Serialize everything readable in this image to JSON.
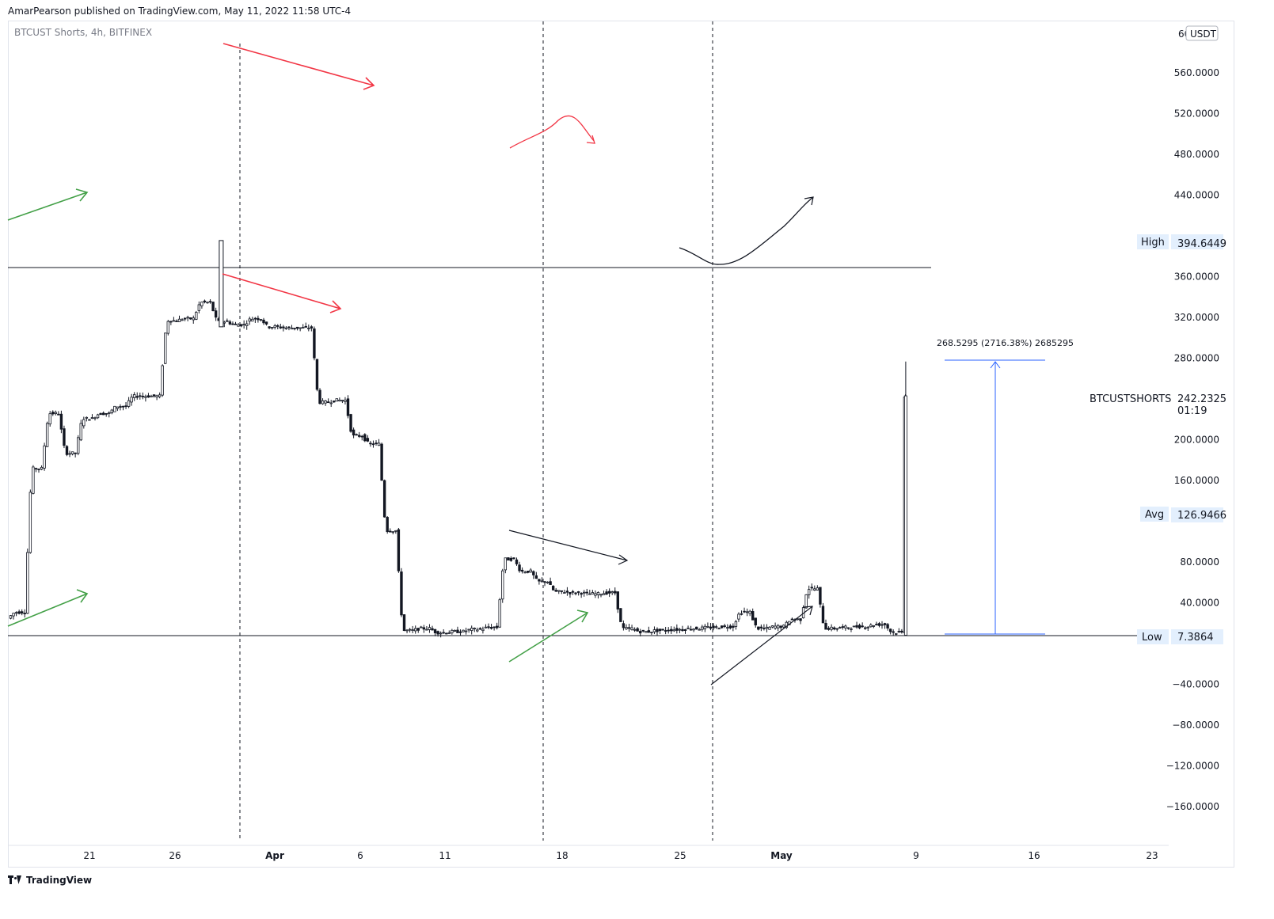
{
  "publisher_line": "AmarPearson published on TradingView.com, May 11, 2022 11:58 UTC-4",
  "symbol_line": "BTCUST Shorts, 4h, BITFINEX",
  "footer_brand": "TradingView",
  "currency_badge": "USDT",
  "price_axis_labels": [
    "560.0000",
    "520.0000",
    "480.0000",
    "440.0000",
    "360.0000",
    "320.0000",
    "280.0000",
    "200.0000",
    "160.0000",
    "80.0000",
    "40.0000",
    "−40.0000",
    "−80.0000",
    "−120.0000",
    "−160.0000"
  ],
  "time_axis_labels": [
    {
      "label": "21",
      "major": false
    },
    {
      "label": "26",
      "major": false
    },
    {
      "label": "Apr",
      "major": true
    },
    {
      "label": "6",
      "major": false
    },
    {
      "label": "11",
      "major": false
    },
    {
      "label": "18",
      "major": false
    },
    {
      "label": "25",
      "major": false
    },
    {
      "label": "May",
      "major": true
    },
    {
      "label": "9",
      "major": false
    },
    {
      "label": "16",
      "major": false
    },
    {
      "label": "23",
      "major": false
    }
  ],
  "tags": {
    "high_label": "High",
    "high_value": "394.6449",
    "avg_label": "Avg",
    "avg_value": "126.9466",
    "low_label": "Low",
    "low_value": "7.3864",
    "last_symbol": "BTCUSTSHORTS",
    "last_value": "242.2325",
    "last_countdown": "01:19"
  },
  "measure_label": "268.5295 (2716.38%) 2685295",
  "colors": {
    "candle": "#131722",
    "up_arrow": "#43a047",
    "down_arrow": "#f23645",
    "measure": "#2962ff",
    "axis_text": "#131722"
  },
  "chart_data": {
    "type": "line",
    "style": "candlestick",
    "x": [
      "2022-03-19",
      "2022-03-20",
      "2022-03-21",
      "2022-03-22",
      "2022-03-23",
      "2022-03-24",
      "2022-03-25",
      "2022-03-26",
      "2022-03-27",
      "2022-03-28",
      "2022-03-29",
      "2022-03-30",
      "2022-03-31",
      "2022-04-01",
      "2022-04-02",
      "2022-04-03",
      "2022-04-04",
      "2022-04-05",
      "2022-04-06",
      "2022-04-07",
      "2022-04-08",
      "2022-04-09",
      "2022-04-10",
      "2022-04-11",
      "2022-04-12",
      "2022-04-13",
      "2022-04-14",
      "2022-04-15",
      "2022-04-16",
      "2022-04-17",
      "2022-04-18",
      "2022-04-19",
      "2022-04-20",
      "2022-04-21",
      "2022-04-22",
      "2022-04-23",
      "2022-04-24",
      "2022-04-25",
      "2022-04-26",
      "2022-04-27",
      "2022-04-28",
      "2022-04-29",
      "2022-04-30",
      "2022-05-01",
      "2022-05-02",
      "2022-05-03",
      "2022-05-04",
      "2022-05-05",
      "2022-05-06",
      "2022-05-07",
      "2022-05-08",
      "2022-05-09",
      "2022-05-10",
      "2022-05-11"
    ],
    "series": [
      {
        "values": [
          30,
          171,
          225,
          186,
          220,
          225,
          232,
          242,
          242,
          316,
          318,
          334,
          315,
          312,
          318,
          310,
          309,
          309,
          236,
          238,
          203,
          195,
          110,
          12,
          14,
          10,
          11,
          13,
          15,
          82,
          70,
          60,
          50,
          49,
          48,
          49,
          14,
          11,
          12,
          13,
          14,
          15,
          16,
          30,
          14,
          16,
          23,
          53,
          14,
          15,
          16,
          18,
          10,
          242
        ]
      }
    ],
    "ylim": [
      -190,
      600
    ],
    "grid": false,
    "high": 394.6449,
    "low": 7.3864,
    "avg": 126.9466,
    "last": 242.2325
  }
}
